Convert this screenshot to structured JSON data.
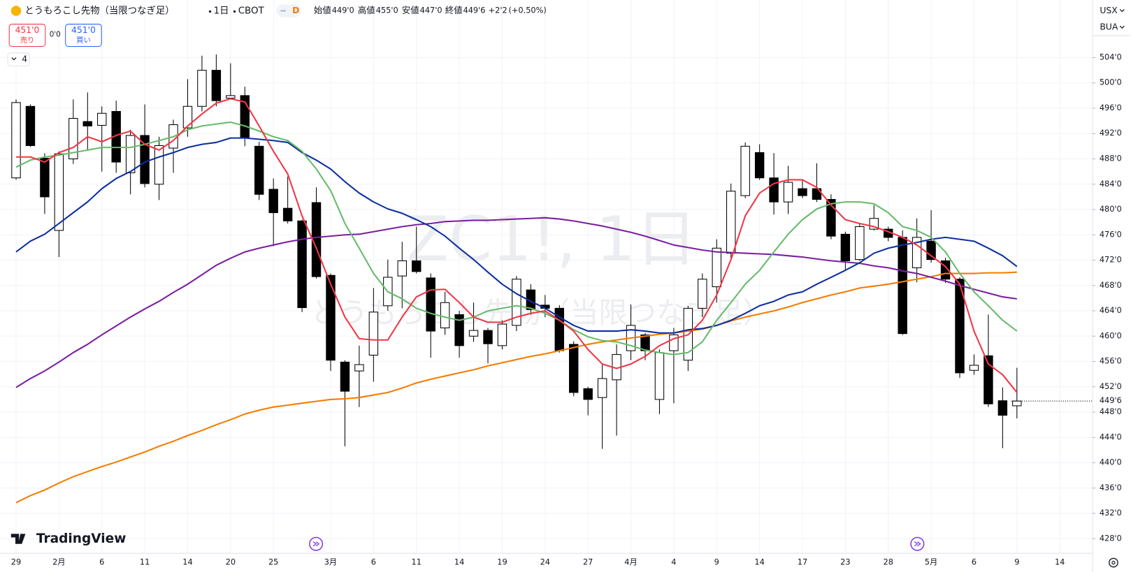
{
  "header": {
    "symbol_title": "とうもろこし先物（当限つなぎ足）",
    "interval": "1日",
    "exchange": "CBOT",
    "badge": "D",
    "ohlc": [
      {
        "label": "始値",
        "value": "449'0"
      },
      {
        "label": "高値",
        "value": "455'0"
      },
      {
        "label": "安値",
        "value": "447'0"
      },
      {
        "label": "終値",
        "value": "449'6"
      }
    ],
    "change": "+2'2",
    "change_pct": "(+0.50%)"
  },
  "trade": {
    "sell_price": "451'0",
    "sell_label": "売り",
    "spread": "0'0",
    "buy_price": "451'0",
    "buy_label": "買い"
  },
  "indicator_count": "4",
  "currency": "USX",
  "unit": "BUA",
  "watermark": {
    "symbol": "ZC1!, 1日",
    "name": "とうもろこし先物（当限つなぎ足）"
  },
  "brand": "TradingView",
  "chart_data": {
    "type": "candlestick",
    "grid": true,
    "up_color": "#ffffff",
    "down_color": "#000000",
    "last_price_label": "449'6",
    "categories": [
      "29",
      null,
      null,
      "2月",
      null,
      null,
      "6",
      null,
      null,
      "11",
      null,
      null,
      "14",
      null,
      null,
      "20",
      null,
      null,
      "25",
      null,
      null,
      null,
      "3月",
      null,
      null,
      "6",
      null,
      null,
      "11",
      null,
      null,
      "14",
      null,
      null,
      "19",
      null,
      null,
      "24",
      null,
      null,
      "27",
      null,
      null,
      "4月",
      null,
      null,
      "4",
      null,
      null,
      "9",
      null,
      null,
      "14",
      null,
      null,
      "17",
      null,
      null,
      "23",
      null,
      null,
      "28",
      null,
      null,
      "5月",
      null,
      null,
      "6",
      null,
      null,
      "9",
      null,
      null,
      "14",
      null
    ],
    "open": [
      485.0,
      496.3,
      488.1,
      476.7,
      488.0,
      493.9,
      493.3,
      495.5,
      485.8,
      491.7,
      484.0,
      489.7,
      492.9,
      496.3,
      502.0,
      497.6,
      498.0,
      490.0,
      483.2,
      480.2,
      478.2,
      481.1,
      469.6,
      455.9,
      454.5,
      457.0,
      464.8,
      469.5,
      471.9,
      469.2,
      461.3,
      463.4,
      460.0,
      460.9,
      458.5,
      461.7,
      467.3,
      464.9,
      464.4,
      458.7,
      451.7,
      450.3,
      453.1,
      457.7,
      460.2,
      450.0,
      457.7,
      456.2,
      464.4,
      467.8,
      473.1,
      482.2,
      489.0,
      485.0,
      481.2,
      483.3,
      483.3,
      481.6,
      476.1,
      472.1,
      476.9,
      476.9,
      475.6,
      470.8,
      475.0,
      471.9,
      469.0,
      454.6,
      456.9,
      449.8,
      449.0,
      null,
      null,
      null,
      null
    ],
    "high": [
      497.4,
      496.6,
      488.9,
      489.2,
      497.4,
      498.5,
      496.3,
      497.2,
      492.6,
      496.6,
      491.5,
      494.2,
      500.6,
      504.3,
      504.5,
      503.1,
      499.4,
      490.7,
      484.9,
      485.2,
      478.4,
      483.5,
      469.9,
      456.2,
      458.5,
      467.6,
      472.1,
      474.9,
      477.3,
      469.9,
      467.0,
      464.0,
      465.3,
      461.3,
      462.5,
      469.5,
      468.2,
      466.5,
      464.9,
      459.2,
      452.0,
      455.6,
      458.7,
      465.0,
      460.5,
      457.9,
      461.3,
      464.8,
      469.9,
      475.3,
      484.1,
      490.6,
      490.3,
      488.9,
      486.9,
      484.7,
      487.3,
      482.4,
      476.5,
      477.8,
      480.7,
      477.3,
      476.7,
      478.6,
      479.9,
      472.4,
      469.3,
      457.1,
      463.4,
      451.9,
      455.0,
      null,
      null,
      null,
      null
    ],
    "low": [
      484.7,
      489.9,
      479.3,
      472.5,
      487.2,
      489.4,
      486.0,
      485.8,
      482.4,
      483.5,
      481.5,
      485.8,
      491.5,
      495.5,
      496.3,
      497.6,
      490.0,
      481.5,
      474.2,
      477.8,
      463.8,
      469.1,
      454.5,
      442.6,
      448.8,
      452.8,
      464.0,
      464.4,
      469.9,
      456.6,
      460.2,
      456.6,
      459.1,
      455.7,
      457.9,
      460.8,
      463.4,
      463.0,
      457.4,
      450.5,
      447.5,
      442.2,
      444.3,
      456.2,
      456.2,
      447.7,
      449.4,
      454.5,
      463.0,
      465.3,
      472.1,
      481.8,
      484.7,
      479.2,
      479.3,
      481.8,
      481.2,
      475.3,
      470.4,
      471.9,
      476.7,
      475.0,
      460.2,
      468.5,
      471.6,
      468.4,
      453.4,
      453.9,
      448.8,
      442.3,
      447.0,
      null,
      null,
      null,
      null
    ],
    "close": [
      496.9,
      490.1,
      482.0,
      488.8,
      494.4,
      493.2,
      495.2,
      487.5,
      491.7,
      484.1,
      490.1,
      493.4,
      496.3,
      502.0,
      497.2,
      498.0,
      491.3,
      482.4,
      479.5,
      478.2,
      464.5,
      469.4,
      456.2,
      451.3,
      455.5,
      463.8,
      469.3,
      471.9,
      470.2,
      460.8,
      465.3,
      458.5,
      460.9,
      458.8,
      461.9,
      469.0,
      464.2,
      464.4,
      457.7,
      451.1,
      450.0,
      453.3,
      457.1,
      461.7,
      457.7,
      457.4,
      460.2,
      464.4,
      469.0,
      473.9,
      482.9,
      490.0,
      485.0,
      481.2,
      484.3,
      482.2,
      481.6,
      475.8,
      471.9,
      477.3,
      478.6,
      475.6,
      460.4,
      475.6,
      472.1,
      469.0,
      454.2,
      455.4,
      449.3,
      447.5,
      449.75,
      null,
      null,
      null,
      null
    ],
    "series": [
      {
        "color": "#f57c00",
        "values": [
          433.7,
          434.8,
          435.7,
          436.8,
          437.8,
          438.6,
          439.4,
          440.1,
          440.9,
          441.7,
          442.6,
          443.4,
          444.3,
          445.1,
          446.0,
          446.8,
          447.7,
          448.3,
          448.8,
          449.1,
          449.4,
          449.7,
          450.0,
          450.1,
          450.3,
          450.7,
          451.1,
          451.8,
          452.6,
          453.2,
          453.7,
          454.2,
          454.7,
          455.3,
          455.8,
          456.3,
          456.8,
          457.2,
          457.7,
          458.2,
          458.7,
          459.1,
          459.4,
          459.7,
          460.0,
          460.3,
          460.5,
          460.8,
          461.1,
          461.7,
          462.4,
          463.0,
          463.5,
          464.0,
          464.6,
          465.3,
          465.9,
          466.5,
          467.0,
          467.6,
          467.9,
          468.2,
          468.6,
          469.0,
          469.4,
          469.9,
          469.9,
          469.9,
          470.0,
          470.0,
          470.1,
          null,
          null,
          null,
          null
        ]
      },
      {
        "color": "#7b1fa2",
        "values": [
          451.9,
          453.3,
          454.5,
          455.9,
          457.4,
          458.7,
          460.2,
          461.6,
          463.0,
          464.3,
          465.5,
          466.9,
          468.2,
          469.7,
          471.2,
          472.3,
          473.3,
          473.9,
          474.4,
          474.9,
          475.3,
          475.6,
          475.8,
          476.0,
          476.1,
          476.5,
          476.9,
          477.3,
          477.6,
          477.8,
          478.1,
          478.2,
          478.3,
          478.3,
          478.4,
          478.5,
          478.6,
          478.7,
          478.5,
          478.2,
          477.8,
          477.4,
          476.9,
          476.4,
          475.8,
          475.1,
          474.4,
          474.0,
          473.6,
          473.3,
          473.2,
          473.1,
          473.0,
          472.9,
          472.7,
          472.5,
          472.2,
          471.9,
          471.7,
          471.5,
          471.1,
          470.8,
          470.3,
          469.9,
          469.3,
          468.7,
          468.0,
          467.4,
          466.8,
          466.2,
          465.9,
          null,
          null,
          null,
          null
        ]
      },
      {
        "color": "#0d2f9e",
        "values": [
          473.3,
          475.0,
          476.1,
          477.8,
          479.5,
          481.2,
          483.3,
          484.9,
          486.0,
          487.5,
          488.3,
          489.0,
          489.8,
          490.3,
          490.6,
          491.3,
          491.3,
          491.1,
          490.9,
          490.6,
          489.0,
          487.8,
          486.4,
          484.4,
          482.6,
          481.2,
          480.1,
          479.4,
          478.4,
          477.3,
          475.8,
          473.9,
          472.1,
          470.1,
          468.2,
          466.7,
          465.5,
          464.4,
          463.0,
          461.7,
          460.8,
          460.8,
          460.8,
          461.0,
          460.8,
          460.5,
          460.5,
          461.0,
          461.2,
          461.7,
          462.5,
          463.6,
          464.8,
          465.5,
          466.5,
          467.0,
          468.2,
          469.3,
          470.4,
          471.6,
          473.1,
          473.9,
          474.4,
          474.8,
          475.3,
          475.6,
          475.3,
          475.0,
          473.9,
          472.7,
          471.0,
          null,
          null,
          null,
          null
        ]
      },
      {
        "color": "#66bb6a",
        "values": [
          486.7,
          487.8,
          488.3,
          488.6,
          489.0,
          489.4,
          489.8,
          489.8,
          489.8,
          490.3,
          490.9,
          491.5,
          492.6,
          493.2,
          493.5,
          493.8,
          493.2,
          492.4,
          491.5,
          490.9,
          489.2,
          486.4,
          483.0,
          477.8,
          473.9,
          469.9,
          467.0,
          465.9,
          464.4,
          463.6,
          463.0,
          462.5,
          463.0,
          464.0,
          464.4,
          464.8,
          464.4,
          463.6,
          462.5,
          461.0,
          459.9,
          459.3,
          459.1,
          458.5,
          457.8,
          457.4,
          457.1,
          457.4,
          459.1,
          462.5,
          465.3,
          468.2,
          470.4,
          473.3,
          476.1,
          478.4,
          480.1,
          480.9,
          481.2,
          481.2,
          480.9,
          479.5,
          477.3,
          476.7,
          475.6,
          473.3,
          469.9,
          467.0,
          464.8,
          462.5,
          460.8,
          null,
          null,
          null,
          null
        ]
      },
      {
        "color": "#f23645",
        "values": [
          488.3,
          488.3,
          487.5,
          489.0,
          489.8,
          491.5,
          490.7,
          491.7,
          492.4,
          490.3,
          489.4,
          490.9,
          493.2,
          495.1,
          496.8,
          497.5,
          497.0,
          493.2,
          489.2,
          485.6,
          479.0,
          473.9,
          468.2,
          463.0,
          459.6,
          459.4,
          459.4,
          463.0,
          466.2,
          467.3,
          467.4,
          465.3,
          463.0,
          462.2,
          462.2,
          463.0,
          463.6,
          464.0,
          462.5,
          460.8,
          457.9,
          455.6,
          454.9,
          455.6,
          456.8,
          458.5,
          459.6,
          460.2,
          462.5,
          466.5,
          472.1,
          479.0,
          482.6,
          484.1,
          484.7,
          484.7,
          483.5,
          480.7,
          478.4,
          477.8,
          477.3,
          476.5,
          475.6,
          474.4,
          472.7,
          471.0,
          468.2,
          460.8,
          455.6,
          453.9,
          451.1,
          null,
          null,
          null,
          null
        ]
      }
    ],
    "ylim": [
      425.7,
      513.1
    ],
    "yticks": [
      {
        "value": 428,
        "label": "428'0"
      },
      {
        "value": 432,
        "label": "432'0"
      },
      {
        "value": 436,
        "label": "436'0"
      },
      {
        "value": 440,
        "label": "440'0"
      },
      {
        "value": 444,
        "label": "444'0"
      },
      {
        "value": 448,
        "label": "448'0"
      },
      {
        "value": 452,
        "label": "452'0"
      },
      {
        "value": 456,
        "label": "456'0"
      },
      {
        "value": 460,
        "label": "460'0"
      },
      {
        "value": 464,
        "label": "464'0"
      },
      {
        "value": 468,
        "label": "468'0"
      },
      {
        "value": 472,
        "label": "472'0"
      },
      {
        "value": 476,
        "label": "476'0"
      },
      {
        "value": 480,
        "label": "480'0"
      },
      {
        "value": 484,
        "label": "484'0"
      },
      {
        "value": 488,
        "label": "488'0"
      },
      {
        "value": 492,
        "label": "492'0"
      },
      {
        "value": 496,
        "label": "496'0"
      },
      {
        "value": 500,
        "label": "500'0"
      },
      {
        "value": 504,
        "label": "504'0"
      }
    ]
  }
}
